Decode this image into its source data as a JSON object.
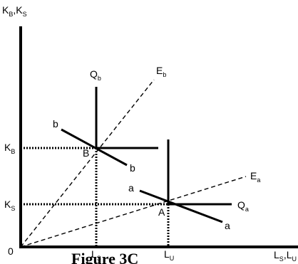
{
  "figure": {
    "caption": "Figure 3C",
    "colors": {
      "ink": "#000000",
      "background": "#ffffff"
    }
  },
  "axes": {
    "y_label": {
      "main": "K",
      "sub1": "B",
      "sep": ",K",
      "sub2": "S"
    },
    "x_label": {
      "main": "L",
      "sub1": "S",
      "sep": ",L",
      "sub2": "U"
    },
    "origin": "0"
  },
  "ticks": {
    "y_kb": {
      "main": "K",
      "sub": "B"
    },
    "y_ks": {
      "main": "K",
      "sub": "S"
    },
    "x_ls": {
      "main": "L",
      "sub": "S"
    },
    "x_lu": {
      "main": "L",
      "sub": "U"
    }
  },
  "labels": {
    "qb": {
      "main": "Q",
      "sub": "b"
    },
    "eb": {
      "main": "E",
      "sub": "b"
    },
    "ea": {
      "main": "E",
      "sub": "a"
    },
    "qa": {
      "main": "Q",
      "sub": "a"
    },
    "b_upper": "b",
    "b_lower": "b",
    "a_upper": "a",
    "a_lower": "a",
    "point_b": "B",
    "point_a": "A"
  }
}
